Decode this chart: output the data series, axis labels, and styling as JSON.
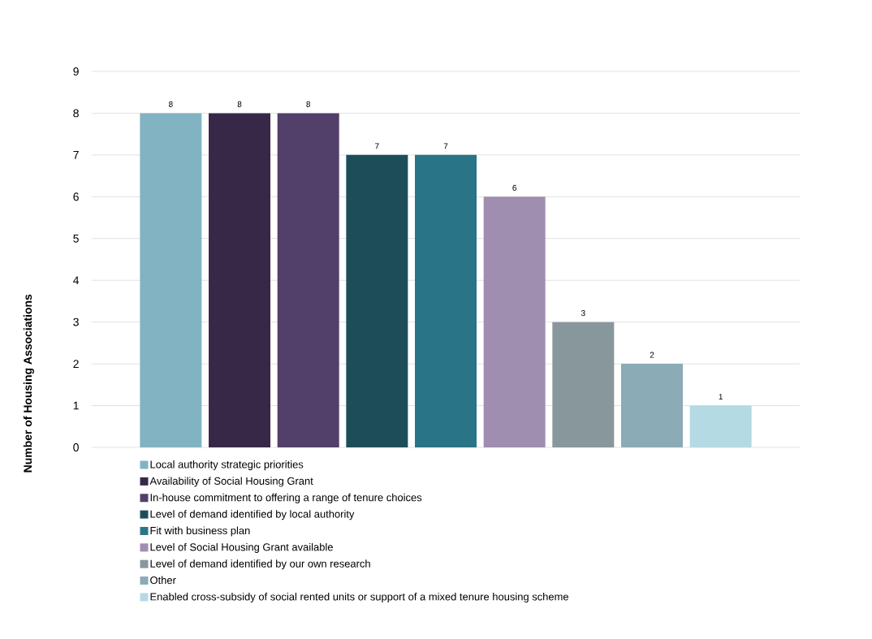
{
  "chart_data": {
    "type": "bar",
    "ylabel": "Number of Housing Associations",
    "categories": [
      null,
      null,
      null,
      null,
      null,
      null,
      null,
      null,
      null
    ],
    "series": [
      {
        "name": "Local authority strategic priorities",
        "color": "#82b3c2",
        "values": [
          8,
          null,
          null,
          null,
          null,
          null,
          null,
          null,
          null
        ]
      },
      {
        "name": "Availability of Social Housing Grant",
        "color": "#382848",
        "values": [
          null,
          8,
          null,
          null,
          null,
          null,
          null,
          null,
          null
        ]
      },
      {
        "name": "In-house commitment to offering a range of tenure choices",
        "color": "#523f6a",
        "values": [
          null,
          null,
          8,
          null,
          null,
          null,
          null,
          null,
          null
        ]
      },
      {
        "name": "Level of demand identified by local authority",
        "color": "#1e4d5a",
        "values": [
          null,
          null,
          null,
          7,
          null,
          null,
          null,
          null,
          null
        ]
      },
      {
        "name": "Fit with business plan",
        "color": "#2a7487",
        "values": [
          null,
          null,
          null,
          null,
          7,
          null,
          null,
          null,
          null
        ]
      },
      {
        "name": "Level of Social Housing Grant available",
        "color": "#9f8eb0",
        "values": [
          null,
          null,
          null,
          null,
          null,
          6,
          null,
          null,
          null
        ]
      },
      {
        "name": "Level of demand identified by our own research",
        "color": "#88979c",
        "values": [
          null,
          null,
          null,
          null,
          null,
          null,
          3,
          null,
          null
        ]
      },
      {
        "name": "Other",
        "color": "#8babb6",
        "values": [
          null,
          null,
          null,
          null,
          null,
          null,
          null,
          2,
          null
        ]
      },
      {
        "name": "Enabled cross-subsidy of social rented units or support of a mixed tenure housing scheme",
        "color": "#b4dae4",
        "values": [
          null,
          null,
          null,
          null,
          null,
          null,
          null,
          null,
          1
        ]
      }
    ],
    "ylim": [
      0,
      9
    ],
    "yticks": [
      0,
      1,
      2,
      3,
      4,
      5,
      6,
      7,
      8,
      9
    ],
    "grid": "y",
    "data_labels": true,
    "legend": "bottom"
  }
}
